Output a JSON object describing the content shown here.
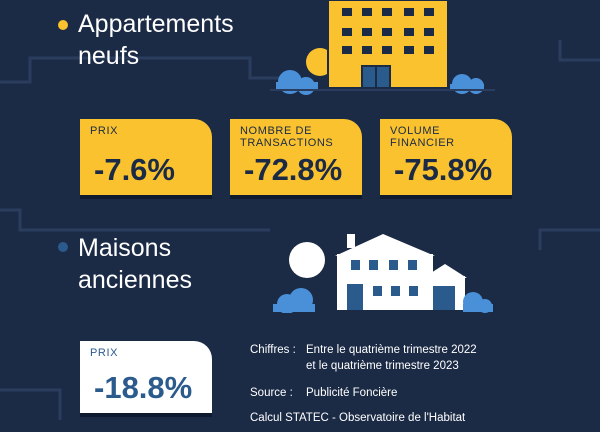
{
  "sections": [
    {
      "title": "Appartements\nneufs",
      "bullet_color": "#f9c22e",
      "cards": [
        {
          "label": "PRIX",
          "value": "-7.6%"
        },
        {
          "label": "NOMBRE DE\nTRANSACTIONS",
          "value": "-72.8%"
        },
        {
          "label": "VOLUME\nFINANCIER",
          "value": "-75.8%"
        }
      ]
    },
    {
      "title": "Maisons\nanciennes",
      "bullet_color": "#2b5a8c",
      "cards": [
        {
          "label": "PRIX",
          "value": "-18.8%"
        }
      ]
    }
  ],
  "notes": {
    "chiffres_key": "Chiffres :",
    "chiffres_val": "Entre le quatrième trimestre 2022\net le quatrième trimestre 2023",
    "source_key": "Source :",
    "source_val": "Publicité Foncière",
    "calcul": "Calcul STATEC - Observatoire de l'Habitat"
  },
  "colors": {
    "background": "#1b2a45",
    "accent_yellow": "#f9c22e",
    "accent_blue": "#2b5a8c",
    "tree_blue": "#4a90d9"
  },
  "icons": [
    "apartment-building-icon",
    "houses-icon"
  ]
}
